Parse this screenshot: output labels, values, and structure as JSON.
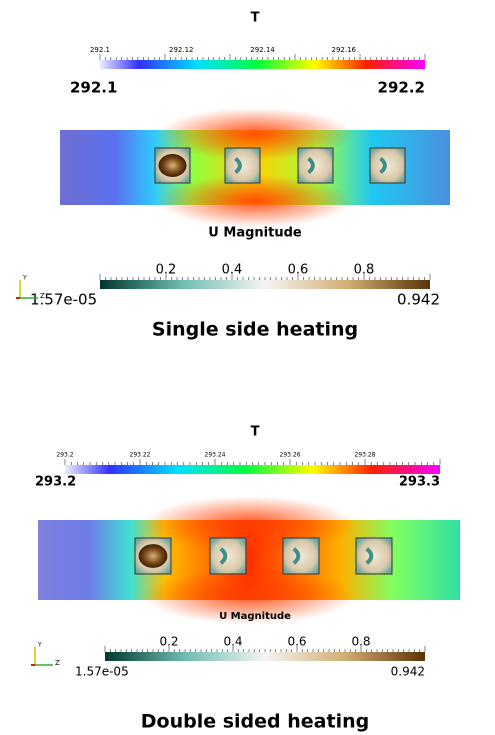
{
  "panels": [
    {
      "temperature_bar": {
        "title": "T",
        "ticks": [
          "292.1",
          "292.12",
          "292.14",
          "292.16"
        ],
        "min": "292.1",
        "max": "292.2"
      },
      "velocity_bar": {
        "title": "U Magnitude",
        "ticks": [
          "0.2",
          "0.4",
          "0.6",
          "0.8"
        ],
        "min": "1.57e-05",
        "max": "0.942"
      },
      "axes": {
        "y": "Y",
        "z": "Z"
      },
      "caption": "Single side heating"
    },
    {
      "temperature_bar": {
        "title": "T",
        "ticks": [
          "293.2",
          "293.22",
          "293.24",
          "293.26",
          "293.28"
        ],
        "min": "293.2",
        "max": "293.3"
      },
      "velocity_bar": {
        "title": "U Magnitude",
        "ticks": [
          "0.2",
          "0.4",
          "0.6",
          "0.8"
        ],
        "min": "1.57e-05",
        "max": "0.942"
      },
      "axes": {
        "y": "Y",
        "z": "Z"
      },
      "caption": "Double sided heating"
    }
  ]
}
